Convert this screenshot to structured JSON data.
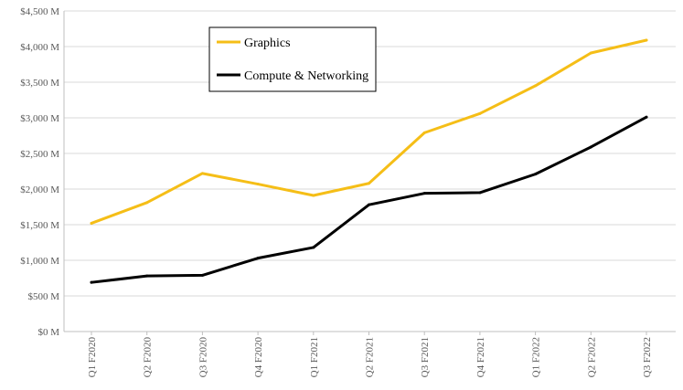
{
  "chart_data": {
    "type": "line",
    "title": "",
    "xlabel": "",
    "ylabel": "",
    "categories": [
      "Q1 F2020",
      "Q2 F2020",
      "Q3 F2020",
      "Q4 F2020",
      "Q1 F2021",
      "Q2 F2021",
      "Q3 F2021",
      "Q4 F2021",
      "Q1 F2022",
      "Q2 F2022",
      "Q3 F2022"
    ],
    "ylim": [
      0,
      4500
    ],
    "ytick_values": [
      0,
      500,
      1000,
      1500,
      2000,
      2500,
      3000,
      3500,
      4000,
      4500
    ],
    "ytick_labels": [
      "$0 M",
      "$500 M",
      "$1,000 M",
      "$1,500 M",
      "$2,000 M",
      "$2,500 M",
      "$3,000 M",
      "$3,500 M",
      "$4,000 M",
      "$4,500 M"
    ],
    "grid": true,
    "legend_position": "top-left",
    "series": [
      {
        "name": "Graphics",
        "color": "#F5BE17",
        "values": [
          1520,
          1810,
          2220,
          2070,
          1910,
          2080,
          2790,
          3060,
          3450,
          3910,
          4090
        ]
      },
      {
        "name": "Compute & Networking",
        "color": "#000000",
        "values": [
          690,
          780,
          790,
          1030,
          1180,
          1780,
          1940,
          1950,
          2210,
          2590,
          3010
        ]
      }
    ]
  }
}
